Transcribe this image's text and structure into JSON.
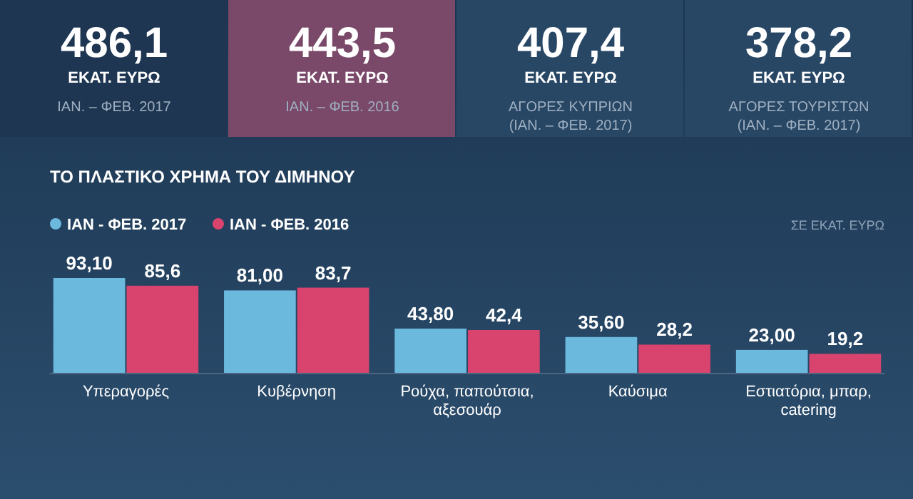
{
  "chart_data": [
    {
      "type": "other",
      "colors": [
        "#1e3651",
        "#7a4868",
        "#284765",
        "#284765"
      ],
      "annotations": [
        "486,1",
        "ΕΚΑΤ. ΕΥΡΩ",
        "ΙΑΝ. – ΦΕΒ. 2017",
        "443,5",
        "ΕΚΑΤ. ΕΥΡΩ",
        "ΙΑΝ. – ΦΕΒ. 2016",
        "407,4",
        "ΕΚΑΤ. ΕΥΡΩ",
        "ΑΓΟΡΕΣ ΚΥΠΡΙΩΝ (ΙΑΝ. – ΦΕΒ. 2017)",
        "378,2",
        "ΕΚΑΤ. ΕΥΡΩ",
        "ΑΓΟΡΕΣ ΤΟΥΡΙΣΤΩΝ (ΙΑΝ. – ΦΕΒ. 2017)"
      ]
    },
    {
      "type": "bar",
      "title": "ΤΟ ΠΛΑΣΤΙΚΟ ΧΡΗΜΑ ΤΟΥ ΔΙΜΗΝΟΥ",
      "annotations": [
        "ΣΕ ΕΚΑΤ. ΕΥΡΩ"
      ],
      "categories": [
        "Υπεραγορές",
        "Κυβέρνηση",
        "Ρούχα, παπούτσια, αξεσουάρ",
        "Καύσιμα",
        "Εστιατόρια, μπαρ, catering"
      ],
      "tick_labels": "x",
      "legend": "top left",
      "series": [
        {
          "name": "ΙΑΝ - ΦΕΒ. 2017",
          "color": "#6cb9de",
          "values": [
            93.1,
            81.0,
            43.8,
            35.6,
            23.0
          ],
          "value_labels": [
            "93,10",
            "81,00",
            "43,80",
            "35,60",
            "23,00"
          ]
        },
        {
          "name": "ΙΑΝ - ΦΕΒ. 2016",
          "color": "#d8446d",
          "values": [
            85.6,
            83.7,
            42.4,
            28.2,
            19.2
          ],
          "value_labels": [
            "85,6",
            "83,7",
            "42,4",
            "28,2",
            "19,2"
          ]
        }
      ]
    }
  ]
}
